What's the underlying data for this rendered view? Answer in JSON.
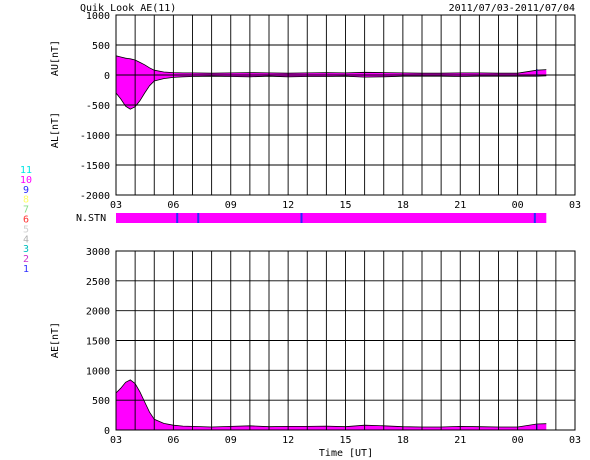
{
  "header": {
    "title": "Quik Look AE(11)",
    "date_range": "2011/07/03-2011/07/04"
  },
  "station_legend": {
    "entries": [
      {
        "label": "11",
        "color": "#00e5e5"
      },
      {
        "label": "10",
        "color": "#ff00ff"
      },
      {
        "label": "9",
        "color": "#2a2aff"
      },
      {
        "label": "8",
        "color": "#ffff66"
      },
      {
        "label": "7",
        "color": "#88dd88"
      },
      {
        "label": "6",
        "color": "#ff3030"
      },
      {
        "label": "5",
        "color": "#d0d0d0"
      },
      {
        "label": "4",
        "color": "#b0b0b0"
      },
      {
        "label": "3",
        "color": "#00bfbf"
      },
      {
        "label": "2",
        "color": "#cc33cc"
      },
      {
        "label": "1",
        "color": "#3030ff"
      }
    ]
  },
  "nstn_label": "N.STN",
  "nstn_bar": {
    "fill_color": "#ff00ff",
    "end_hour": 22.5,
    "markers_hours": [
      3.2,
      4.3,
      9.7,
      21.9
    ],
    "marker_color": "#2a2aff"
  },
  "xlabel": "Time [UT]",
  "colors": {
    "fill": "#ff00ff",
    "outline": "#000000",
    "grid": "#000000",
    "recent": "#2a2aff"
  },
  "chart_data": [
    {
      "type": "area",
      "ylabel_upper": "AU[nT]",
      "ylabel_lower": "AL[nT]",
      "xlim_hours": [
        0,
        24
      ],
      "xtick_labels": [
        "03",
        "06",
        "09",
        "12",
        "15",
        "18",
        "21",
        "00",
        "03"
      ],
      "ylim": [
        -2000,
        1000
      ],
      "yticks": [
        1000,
        500,
        0,
        -500,
        -1000,
        -1500,
        -2000
      ],
      "grid": true,
      "data_end_hour": 22.5,
      "au": {
        "x": [
          0,
          0.25,
          0.5,
          0.75,
          1,
          1.25,
          1.5,
          1.75,
          2,
          2.5,
          3,
          3.5,
          4,
          5,
          6,
          7,
          8,
          9,
          10,
          11,
          12,
          13,
          14,
          15,
          16,
          17,
          18,
          19,
          20,
          21,
          22,
          22.5
        ],
        "y": [
          320,
          300,
          280,
          270,
          250,
          210,
          170,
          120,
          80,
          50,
          40,
          35,
          35,
          30,
          35,
          40,
          35,
          30,
          35,
          40,
          35,
          45,
          40,
          35,
          30,
          30,
          35,
          35,
          30,
          30,
          80,
          90
        ]
      },
      "al": {
        "x": [
          0,
          0.25,
          0.5,
          0.75,
          1,
          1.25,
          1.5,
          1.75,
          2,
          2.5,
          3,
          3.5,
          4,
          5,
          6,
          7,
          8,
          9,
          10,
          11,
          12,
          13,
          14,
          15,
          16,
          17,
          18,
          19,
          20,
          21,
          22,
          22.5
        ],
        "y": [
          -300,
          -400,
          -520,
          -570,
          -530,
          -430,
          -300,
          -180,
          -100,
          -60,
          -40,
          -30,
          -25,
          -20,
          -25,
          -30,
          -20,
          -30,
          -25,
          -25,
          -20,
          -35,
          -30,
          -20,
          -20,
          -20,
          -25,
          -20,
          -20,
          -20,
          -20,
          -15
        ]
      }
    },
    {
      "type": "area",
      "ylabel": "AE[nT]",
      "xlim_hours": [
        0,
        24
      ],
      "xtick_labels": [
        "03",
        "06",
        "09",
        "12",
        "15",
        "18",
        "21",
        "00",
        "03"
      ],
      "ylim": [
        0,
        3000
      ],
      "yticks": [
        3000,
        2500,
        2000,
        1500,
        1000,
        500,
        0
      ],
      "grid": true,
      "data_end_hour": 22.5,
      "ae": {
        "x": [
          0,
          0.25,
          0.5,
          0.75,
          1,
          1.25,
          1.5,
          1.75,
          2,
          2.5,
          3,
          3.5,
          4,
          5,
          6,
          7,
          8,
          9,
          10,
          11,
          12,
          13,
          14,
          15,
          16,
          17,
          18,
          19,
          20,
          21,
          22,
          22.5
        ],
        "y": [
          620,
          700,
          800,
          840,
          780,
          640,
          470,
          300,
          180,
          110,
          80,
          65,
          60,
          50,
          60,
          70,
          55,
          60,
          60,
          65,
          55,
          80,
          70,
          55,
          50,
          50,
          60,
          55,
          50,
          50,
          100,
          105
        ]
      }
    }
  ]
}
